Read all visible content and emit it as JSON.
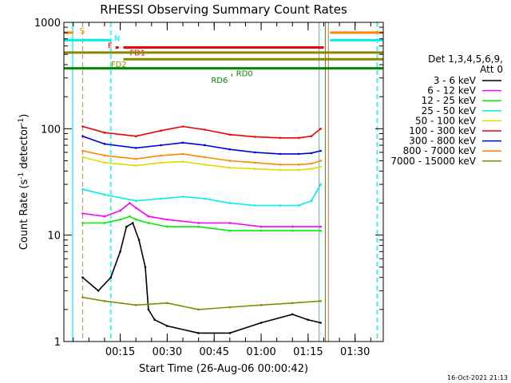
{
  "chart_data": {
    "type": "line",
    "title": "RHESSI Observing Summary Count Rates",
    "xlabel": "Start Time (26-Aug-06 00:00:42)",
    "ylabel": "Count Rate (s",
    "ylabel_sup": "-1",
    "ylabel_tail": " detector",
    "ylabel_tail_sup": "-1",
    "ylabel_end": ")",
    "y_scale": "log",
    "ylim": [
      1,
      1000
    ],
    "xlim_minutes": [
      -3,
      99
    ],
    "y_ticks": [
      1,
      10,
      100,
      1000
    ],
    "y_tick_labels": [
      "1",
      "10",
      "100",
      "1000"
    ],
    "x_ticks_minutes": [
      15,
      30,
      45,
      60,
      75,
      90
    ],
    "x_tick_labels": [
      "00:15",
      "00:30",
      "00:45",
      "01:00",
      "01:15",
      "01:30"
    ],
    "legend": {
      "placement": "right",
      "header": [
        "Det 1,3,4,5,6,9,",
        "Att 0"
      ],
      "entries": [
        {
          "label": "3 - 6 keV",
          "color": "#000000"
        },
        {
          "label": "6 - 12 keV",
          "color": "#ff00ff"
        },
        {
          "label": "12 - 25 keV",
          "color": "#00ee00"
        },
        {
          "label": "25 - 50 keV",
          "color": "#00eeee"
        },
        {
          "label": "50 - 100 keV",
          "color": "#dddd00"
        },
        {
          "label": "100 - 300 keV",
          "color": "#ee0000"
        },
        {
          "label": "300 - 800 keV",
          "color": "#0000dd"
        },
        {
          "label": "800 - 7000 keV",
          "color": "#ff8800"
        },
        {
          "label": "7000 - 15000 keV",
          "color": "#888800"
        }
      ]
    },
    "series": [
      {
        "name": "100 - 300 keV",
        "color": "#ee0000",
        "x": [
          3,
          10,
          20,
          28,
          35,
          42,
          50,
          58,
          66,
          72,
          76,
          79
        ],
        "y": [
          105,
          92,
          85,
          96,
          105,
          98,
          88,
          84,
          82,
          82,
          85,
          100
        ]
      },
      {
        "name": "300 - 800 keV",
        "color": "#0000dd",
        "x": [
          3,
          10,
          20,
          28,
          35,
          42,
          50,
          58,
          66,
          72,
          76,
          79
        ],
        "y": [
          85,
          72,
          66,
          70,
          74,
          70,
          64,
          60,
          58,
          58,
          59,
          62
        ]
      },
      {
        "name": "800 - 7000 keV",
        "color": "#ff8800",
        "x": [
          3,
          10,
          20,
          28,
          35,
          42,
          50,
          58,
          66,
          72,
          76,
          79
        ],
        "y": [
          62,
          56,
          52,
          56,
          58,
          54,
          50,
          48,
          46,
          46,
          47,
          50
        ]
      },
      {
        "name": "50 - 100 keV",
        "color": "#dddd00",
        "x": [
          3,
          10,
          20,
          28,
          35,
          42,
          50,
          58,
          66,
          72,
          76,
          79
        ],
        "y": [
          54,
          48,
          45,
          48,
          49,
          46,
          43,
          42,
          41,
          41,
          42,
          44
        ]
      },
      {
        "name": "25 - 50 keV",
        "color": "#00eeee",
        "x": [
          3,
          10,
          20,
          28,
          35,
          42,
          50,
          58,
          66,
          72,
          76,
          79
        ],
        "y": [
          27,
          24,
          21,
          22,
          23,
          22,
          20,
          19,
          19,
          19,
          21,
          30
        ]
      },
      {
        "name": "6 - 12 keV",
        "color": "#ff00ff",
        "x": [
          3,
          10,
          15,
          18,
          20,
          24,
          30,
          40,
          50,
          60,
          70,
          79
        ],
        "y": [
          16,
          15,
          17,
          20,
          18,
          15,
          14,
          13,
          13,
          12,
          12,
          12
        ]
      },
      {
        "name": "12 - 25 keV",
        "color": "#00ee00",
        "x": [
          3,
          10,
          15,
          18,
          20,
          24,
          30,
          40,
          50,
          60,
          70,
          79
        ],
        "y": [
          13,
          13,
          14,
          15,
          14,
          13,
          12,
          12,
          11,
          11,
          11,
          11
        ]
      },
      {
        "name": "3 - 6 keV",
        "color": "#000000",
        "x": [
          3,
          8,
          12,
          15,
          17,
          19,
          21,
          23,
          24,
          26,
          30,
          40,
          50,
          60,
          70,
          75,
          79
        ],
        "y": [
          4,
          3,
          4,
          7,
          12,
          13,
          9,
          5,
          2,
          1.6,
          1.4,
          1.2,
          1.2,
          1.5,
          1.8,
          1.6,
          1.5
        ]
      },
      {
        "name": "7000 - 15000 keV",
        "color": "#888800",
        "x": [
          3,
          10,
          20,
          30,
          40,
          50,
          60,
          70,
          79
        ],
        "y": [
          2.6,
          2.4,
          2.2,
          2.3,
          2.0,
          2.1,
          2.2,
          2.3,
          2.4
        ]
      }
    ],
    "flag_bars": [
      {
        "label": "S",
        "color": "#ff8800",
        "x": [
          -3,
          0
        ],
        "level": 800,
        "label_x": 2
      },
      {
        "label": "",
        "color": "#ff8800",
        "x": [
          82,
          99
        ],
        "level": 800
      },
      {
        "label": "N",
        "color": "#00eeee",
        "x": [
          -3,
          12
        ],
        "level": 680,
        "label_x": 13
      },
      {
        "label": "",
        "color": "#00eeee",
        "x": [
          82,
          99
        ],
        "level": 680
      },
      {
        "label": "F",
        "color": "#ee0000",
        "x": [
          13.5,
          14.5
        ],
        "level": 580,
        "label_x": 11
      },
      {
        "label": "FD1",
        "color": "#ee0000",
        "x": [
          16,
          80
        ],
        "level": 580,
        "label_x": 18
      },
      {
        "label": "",
        "color": "#888800",
        "x": [
          -3,
          99
        ],
        "level": 520
      },
      {
        "label": "FD2",
        "color": "#888800",
        "x": [
          16,
          99
        ],
        "level": 450,
        "label_x": 12
      },
      {
        "label": "RD0",
        "color": "#008800",
        "x": [
          -3,
          99
        ],
        "level": 370,
        "label_x": 52
      },
      {
        "label": "RD6",
        "color": "#008800",
        "x": [
          50.5,
          50.8
        ],
        "level": 320,
        "label_x": 44
      }
    ],
    "vertical_lines": [
      {
        "x": -0.2,
        "color": "#00eeee",
        "dashed": false
      },
      {
        "x": 3,
        "color": "#ff8800",
        "dashed": true
      },
      {
        "x": 12,
        "color": "#00eeee",
        "dashed": true
      },
      {
        "x": 78.5,
        "color": "#00eeee",
        "dashed": false
      },
      {
        "x": 80.5,
        "color": "#888800",
        "dashed": false
      },
      {
        "x": 81.5,
        "color": "#ff8800",
        "dashed": false
      },
      {
        "x": 97,
        "color": "#00eeee",
        "dashed": true
      }
    ],
    "timestamp": "16-Oct-2021 21:13"
  }
}
